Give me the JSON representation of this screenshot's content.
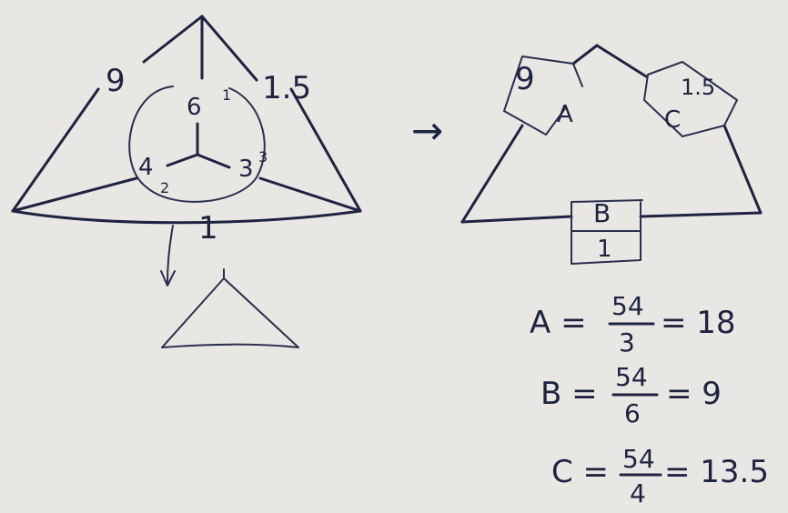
{
  "left_network": {
    "outer_labels": [
      "9",
      "1.5",
      "1"
    ],
    "star_labels": [
      "6",
      "4",
      "3"
    ],
    "node_labels": [
      "1",
      "2",
      "3"
    ]
  },
  "arrow_label": "→",
  "right_network": {
    "branches": [
      {
        "top": "9",
        "bottom": "A"
      },
      {
        "top": "1.5",
        "bottom": "C"
      },
      {
        "top": "B",
        "bottom": "1"
      }
    ]
  },
  "equations": [
    {
      "lhs": "A =",
      "num": "54",
      "den": "3",
      "rhs": "= 18"
    },
    {
      "lhs": "B =",
      "num": "54",
      "den": "6",
      "rhs": "= 9"
    },
    {
      "lhs": "C =",
      "num": "54",
      "den": "4",
      "rhs": "= 13.5"
    }
  ]
}
